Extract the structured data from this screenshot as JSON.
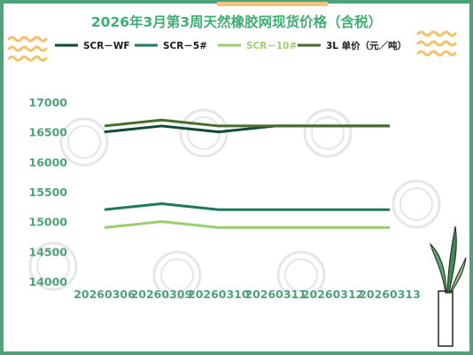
{
  "colors": {
    "frame": "#4ea27a",
    "accent_bar": "#f3c47a",
    "title": "#3fae73",
    "axis_text": "#4ea27a",
    "wave": "#f0c36e",
    "watermark": "#e6e6e6"
  },
  "chart_data": {
    "type": "line",
    "title": "2026年3月第3周天然橡胶网现货价格（含税）",
    "xlabel": "",
    "ylabel": "",
    "categories": [
      "20260306",
      "20260309",
      "20260310",
      "20260311",
      "20260312",
      "20260313"
    ],
    "ylim": [
      14000,
      17000
    ],
    "yticks": [
      14000,
      14500,
      15000,
      15500,
      16000,
      16500,
      17000
    ],
    "grid": false,
    "legend_position": "top",
    "series": [
      {
        "name": "SCR－WF",
        "color": "#0f4a35",
        "values": [
          16500,
          16600,
          16500,
          16600,
          16600,
          16600
        ]
      },
      {
        "name": "SCR－5#",
        "color": "#1e7a5e",
        "values": [
          15200,
          15300,
          15200,
          15200,
          15200,
          15200
        ]
      },
      {
        "name": "SCR－10#",
        "color": "#9bcf6e",
        "values": [
          14900,
          15000,
          14900,
          14900,
          14900,
          14900
        ]
      },
      {
        "name": "3L 单价（元／吨）",
        "color": "#4a6b2e",
        "values": [
          16600,
          16700,
          16600,
          16600,
          16600,
          16600
        ]
      }
    ]
  }
}
